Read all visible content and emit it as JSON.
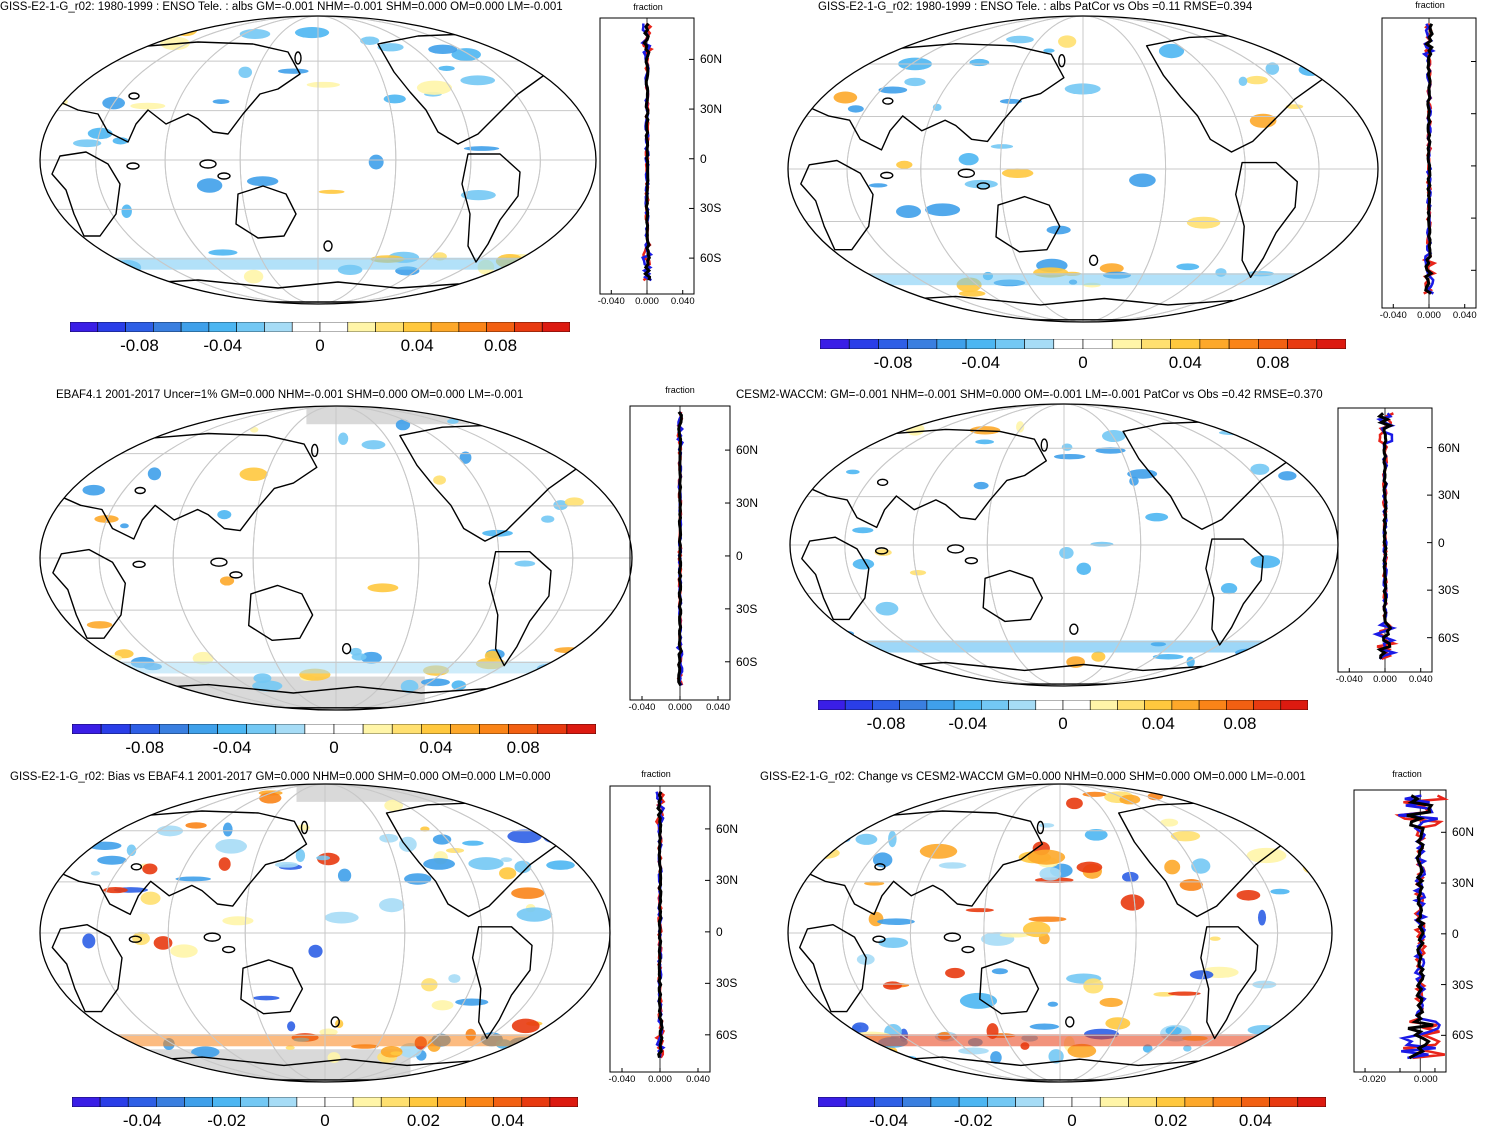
{
  "panels": [
    {
      "title": "GISS-E2-1-G_r02: 1980-1999 : ENSO Tele. : albs GM=-0.001 NHM=-0.001 SHM=0.000 OM=0.000 LM=-0.001",
      "colorbar_ticks": [
        "-0.08",
        "-0.04",
        "0",
        "0.04",
        "0.08"
      ],
      "zonal_header": "fraction",
      "zonal_xticks": [
        "-0.040",
        "0.000",
        "0.040"
      ],
      "lat_labels": [
        "60N",
        "30N",
        "0",
        "30S",
        "60S"
      ]
    },
    {
      "title": "GISS-E2-1-G_r02: 1980-1999 : ENSO Tele. : albs PatCor vs Obs =0.11 RMSE=0.394",
      "colorbar_ticks": [
        "-0.08",
        "-0.04",
        "0",
        "0.04",
        "0.08"
      ],
      "zonal_header": "fraction",
      "zonal_xticks": [
        "-0.040",
        "0.000",
        "0.040"
      ],
      "lat_labels": []
    },
    {
      "title": "EBAF4.1 2001-2017 Uncer=1% GM=0.000 NHM=-0.001 SHM=0.000 OM=0.000 LM=-0.001",
      "colorbar_ticks": [
        "-0.08",
        "-0.04",
        "0",
        "0.04",
        "0.08"
      ],
      "zonal_header": "fraction",
      "zonal_xticks": [
        "-0.040",
        "0.000",
        "0.040"
      ],
      "lat_labels": [
        "60N",
        "30N",
        "0",
        "30S",
        "60S"
      ]
    },
    {
      "title": "CESM2-WACCM: GM=-0.001 NHM=-0.001 SHM=0.000 OM=-0.001 LM=-0.001 PatCor vs Obs =0.42 RMSE=0.370",
      "colorbar_ticks": [
        "-0.08",
        "-0.04",
        "0",
        "0.04",
        "0.08"
      ],
      "zonal_header": "fraction",
      "zonal_xticks": [
        "-0.040",
        "0.000",
        "0.040"
      ],
      "lat_labels": [
        "60N",
        "30N",
        "0",
        "30S",
        "60S"
      ]
    },
    {
      "title": "GISS-E2-1-G_r02: Bias vs EBAF4.1 2001-2017 GM=0.000 NHM=0.000 SHM=0.000 OM=0.000 LM=0.000",
      "colorbar_ticks": [
        "-0.04",
        "-0.02",
        "0",
        "0.02",
        "0.04"
      ],
      "zonal_header": "fraction",
      "zonal_xticks": [
        "-0.040",
        "0.000",
        "0.040"
      ],
      "lat_labels": [
        "60N",
        "30N",
        "0",
        "30S",
        "60S"
      ]
    },
    {
      "title": "GISS-E2-1-G_r02: Change vs CESM2-WACCM GM=0.000 NHM=0.000 SHM=0.000 OM=0.000 LM=-0.001",
      "colorbar_ticks": [
        "-0.04",
        "-0.02",
        "0",
        "0.02",
        "0.04"
      ],
      "zonal_header": "fraction",
      "zonal_xticks": [
        "-0.020",
        "0.000"
      ],
      "lat_labels": [
        "60N",
        "30N",
        "0",
        "30S",
        "60S"
      ]
    }
  ],
  "palette": [
    "#3a1ee6",
    "#2a3ee8",
    "#2e5fe6",
    "#3a7fe0",
    "#3fa0ea",
    "#4cb6f2",
    "#73c8f4",
    "#a6dcf6",
    "#ffffff",
    "#ffffff",
    "#fff5a8",
    "#ffe070",
    "#ffc83e",
    "#fda82a",
    "#fa8418",
    "#f26012",
    "#e83a10",
    "#dc1a10"
  ],
  "series_colors": {
    "obs": "#e8241a",
    "model": "#1a1ae6",
    "mean": "#000000"
  }
}
